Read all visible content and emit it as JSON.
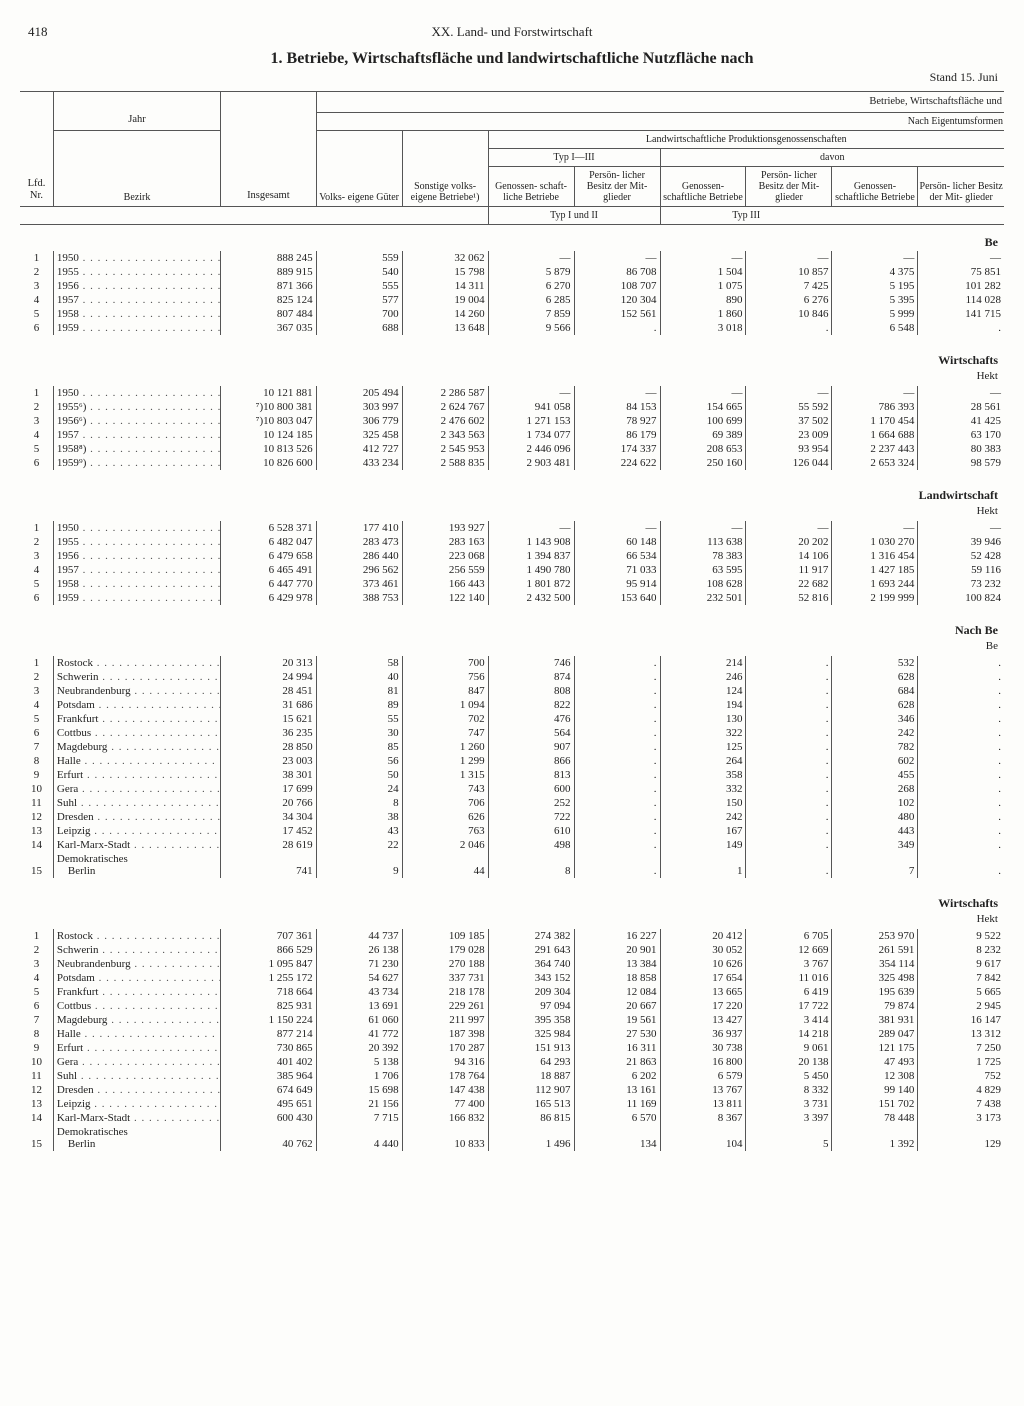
{
  "page_number": "418",
  "section_header": "XX. Land- und Forstwirtschaft",
  "title": "1. Betriebe, Wirtschaftsfläche und landwirtschaftliche Nutzfläche nach",
  "date_note": "Stand 15. Juni",
  "header": {
    "top_right_1": "Betriebe, Wirtschaftsfläche und",
    "top_right_2": "Nach Eigentumsformen",
    "lpg": "Landwirtschaftliche Produktionsgenossenschaften",
    "lfd": "Lfd.\nNr.",
    "jahr": "Jahr",
    "bezirk": "Bezirk",
    "insgesamt": "Insgesamt",
    "volks": "Volks-\neigene\nGüter",
    "sonst": "Sonstige\nvolks-\neigene\nBetriebe¹)",
    "typ13": "Typ I—III",
    "davon": "davon",
    "typ12": "Typ I und II",
    "typ3": "Typ III",
    "gen": "Genossen-\nschaft-\nliche\nBetriebe",
    "pers": "Persön-\nlicher\nBesitz\nder Mit-\nglieder",
    "gen2": "Genossen-\nschaftliche\nBetriebe",
    "pers2": "Persön-\nlicher\nBesitz\nder Mit-\nglieder"
  },
  "section_labels": {
    "be": "Be",
    "wirt": "Wirtschafts",
    "hekt": "Hekt",
    "land": "Landwirtschaft",
    "nachbe": "Nach Be"
  },
  "blocks": [
    {
      "label_row": "be",
      "rows": [
        [
          "1",
          "1950",
          "888 245",
          "559",
          "32 062",
          "—",
          "—",
          "—",
          "—",
          "—",
          "—"
        ],
        [
          "2",
          "1955",
          "889 915",
          "540",
          "15 798",
          "5 879",
          "86 708",
          "1 504",
          "10 857",
          "4 375",
          "75 851"
        ],
        [
          "3",
          "1956",
          "871 366",
          "555",
          "14 311",
          "6 270",
          "108 707",
          "1 075",
          "7 425",
          "5 195",
          "101 282"
        ],
        [
          "4",
          "1957",
          "825 124",
          "577",
          "19 004",
          "6 285",
          "120 304",
          "890",
          "6 276",
          "5 395",
          "114 028"
        ],
        [
          "5",
          "1958",
          "807 484",
          "700",
          "14 260",
          "7 859",
          "152 561",
          "1 860",
          "10 846",
          "5 999",
          "141 715"
        ],
        [
          "6",
          "1959",
          "367 035",
          "688",
          "13 648",
          "9 566",
          ".",
          "3 018",
          ".",
          "6 548",
          "."
        ]
      ]
    },
    {
      "label_row": "wirt",
      "sub": "hekt",
      "rows": [
        [
          "1",
          "1950",
          "10 121 881",
          "205 494",
          "2 286 587",
          "—",
          "—",
          "—",
          "—",
          "—",
          "—"
        ],
        [
          "2",
          "1955⁶)",
          "⁷)10 800 381",
          "303 997",
          "2 624 767",
          "941 058",
          "84 153",
          "154 665",
          "55 592",
          "786 393",
          "28 561"
        ],
        [
          "3",
          "1956⁶)",
          "⁷)10 803 047",
          "306 779",
          "2 476 602",
          "1 271 153",
          "78 927",
          "100 699",
          "37 502",
          "1 170 454",
          "41 425"
        ],
        [
          "4",
          "1957",
          "10 124 185",
          "325 458",
          "2 343 563",
          "1 734 077",
          "86 179",
          "69 389",
          "23 009",
          "1 664 688",
          "63 170"
        ],
        [
          "5",
          "1958⁸)",
          "10 813 526",
          "412 727",
          "2 545 953",
          "2 446 096",
          "174 337",
          "208 653",
          "93 954",
          "2 237 443",
          "80 383"
        ],
        [
          "6",
          "1959⁹)",
          "10 826 600",
          "433 234",
          "2 588 835",
          "2 903 481",
          "224 622",
          "250 160",
          "126 044",
          "2 653 324",
          "98 579"
        ]
      ]
    },
    {
      "label_row": "land",
      "sub": "hekt",
      "rows": [
        [
          "1",
          "1950",
          "6 528 371",
          "177 410",
          "193 927",
          "—",
          "—",
          "—",
          "—",
          "—",
          "—"
        ],
        [
          "2",
          "1955",
          "6 482 047",
          "283 473",
          "283 163",
          "1 143 908",
          "60 148",
          "113 638",
          "20 202",
          "1 030 270",
          "39 946"
        ],
        [
          "3",
          "1956",
          "6 479 658",
          "286 440",
          "223 068",
          "1 394 837",
          "66 534",
          "78 383",
          "14 106",
          "1 316 454",
          "52 428"
        ],
        [
          "4",
          "1957",
          "6 465 491",
          "296 562",
          "256 559",
          "1 490 780",
          "71 033",
          "63 595",
          "11 917",
          "1 427 185",
          "59 116"
        ],
        [
          "5",
          "1958",
          "6 447 770",
          "373 461",
          "166 443",
          "1 801 872",
          "95 914",
          "108 628",
          "22 682",
          "1 693 244",
          "73 232"
        ],
        [
          "6",
          "1959",
          "6 429 978",
          "388 753",
          "122 140",
          "2 432 500",
          "153 640",
          "232 501",
          "52 816",
          "2 199 999",
          "100 824"
        ]
      ]
    },
    {
      "label_row": "nachbe",
      "sub2": "be",
      "rows": [
        [
          "1",
          "Rostock",
          "20 313",
          "58",
          "700",
          "746",
          ".",
          "214",
          ".",
          "532",
          "."
        ],
        [
          "2",
          "Schwerin",
          "24 994",
          "40",
          "756",
          "874",
          ".",
          "246",
          ".",
          "628",
          "."
        ],
        [
          "3",
          "Neubrandenburg",
          "28 451",
          "81",
          "847",
          "808",
          ".",
          "124",
          ".",
          "684",
          "."
        ],
        [
          "4",
          "Potsdam",
          "31 686",
          "89",
          "1 094",
          "822",
          ".",
          "194",
          ".",
          "628",
          "."
        ],
        [
          "5",
          "Frankfurt",
          "15 621",
          "55",
          "702",
          "476",
          ".",
          "130",
          ".",
          "346",
          "."
        ],
        [
          "6",
          "Cottbus",
          "36 235",
          "30",
          "747",
          "564",
          ".",
          "322",
          ".",
          "242",
          "."
        ],
        [
          "7",
          "Magdeburg",
          "28 850",
          "85",
          "1 260",
          "907",
          ".",
          "125",
          ".",
          "782",
          "."
        ],
        [
          "8",
          "Halle",
          "23 003",
          "56",
          "1 299",
          "866",
          ".",
          "264",
          ".",
          "602",
          "."
        ],
        [
          "9",
          "Erfurt",
          "38 301",
          "50",
          "1 315",
          "813",
          ".",
          "358",
          ".",
          "455",
          "."
        ],
        [
          "10",
          "Gera",
          "17 699",
          "24",
          "743",
          "600",
          ".",
          "332",
          ".",
          "268",
          "."
        ],
        [
          "11",
          "Suhl",
          "20 766",
          "8",
          "706",
          "252",
          ".",
          "150",
          ".",
          "102",
          "."
        ],
        [
          "12",
          "Dresden",
          "34 304",
          "38",
          "626",
          "722",
          ".",
          "242",
          ".",
          "480",
          "."
        ],
        [
          "13",
          "Leipzig",
          "17 452",
          "43",
          "763",
          "610",
          ".",
          "167",
          ".",
          "443",
          "."
        ],
        [
          "14",
          "Karl-Marx-Stadt",
          "28 619",
          "22",
          "2 046",
          "498",
          ".",
          "149",
          ".",
          "349",
          "."
        ],
        [
          "15",
          "Demokratisches\n    Berlin",
          "741",
          "9",
          "44",
          "8",
          ".",
          "1",
          ".",
          "7",
          "."
        ]
      ]
    },
    {
      "label_row": "wirt",
      "sub": "hekt",
      "rows": [
        [
          "1",
          "Rostock",
          "707 361",
          "44 737",
          "109 185",
          "274 382",
          "16 227",
          "20 412",
          "6 705",
          "253 970",
          "9 522"
        ],
        [
          "2",
          "Schwerin",
          "866 529",
          "26 138",
          "179 028",
          "291 643",
          "20 901",
          "30 052",
          "12 669",
          "261 591",
          "8 232"
        ],
        [
          "3",
          "Neubrandenburg",
          "1 095 847",
          "71 230",
          "270 188",
          "364 740",
          "13 384",
          "10 626",
          "3 767",
          "354 114",
          "9 617"
        ],
        [
          "4",
          "Potsdam",
          "1 255 172",
          "54 627",
          "337 731",
          "343 152",
          "18 858",
          "17 654",
          "11 016",
          "325 498",
          "7 842"
        ],
        [
          "5",
          "Frankfurt",
          "718 664",
          "43 734",
          "218 178",
          "209 304",
          "12 084",
          "13 665",
          "6 419",
          "195 639",
          "5 665"
        ],
        [
          "6",
          "Cottbus",
          "825 931",
          "13 691",
          "229 261",
          "97 094",
          "20 667",
          "17 220",
          "17 722",
          "79 874",
          "2 945"
        ],
        [
          "7",
          "Magdeburg",
          "1 150 224",
          "61 060",
          "211 997",
          "395 358",
          "19 561",
          "13 427",
          "3 414",
          "381 931",
          "16 147"
        ],
        [
          "8",
          "Halle",
          "877 214",
          "41 772",
          "187 398",
          "325 984",
          "27 530",
          "36 937",
          "14 218",
          "289 047",
          "13 312"
        ],
        [
          "9",
          "Erfurt",
          "730 865",
          "20 392",
          "170 287",
          "151 913",
          "16 311",
          "30 738",
          "9 061",
          "121 175",
          "7 250"
        ],
        [
          "10",
          "Gera",
          "401 402",
          "5 138",
          "94 316",
          "64 293",
          "21 863",
          "16 800",
          "20 138",
          "47 493",
          "1 725"
        ],
        [
          "11",
          "Suhl",
          "385 964",
          "1 706",
          "178 764",
          "18 887",
          "6 202",
          "6 579",
          "5 450",
          "12 308",
          "752"
        ],
        [
          "12",
          "Dresden",
          "674 649",
          "15 698",
          "147 438",
          "112 907",
          "13 161",
          "13 767",
          "8 332",
          "99 140",
          "4 829"
        ],
        [
          "13",
          "Leipzig",
          "495 651",
          "21 156",
          "77 400",
          "165 513",
          "11 169",
          "13 811",
          "3 731",
          "151 702",
          "7 438"
        ],
        [
          "14",
          "Karl-Marx-Stadt",
          "600 430",
          "7 715",
          "166 832",
          "86 815",
          "6 570",
          "8 367",
          "3 397",
          "78 448",
          "3 173"
        ],
        [
          "15",
          "Demokratisches\n    Berlin",
          "40 762",
          "4 440",
          "10 833",
          "1 496",
          "134",
          "104",
          "5",
          "1 392",
          "129"
        ]
      ]
    }
  ]
}
